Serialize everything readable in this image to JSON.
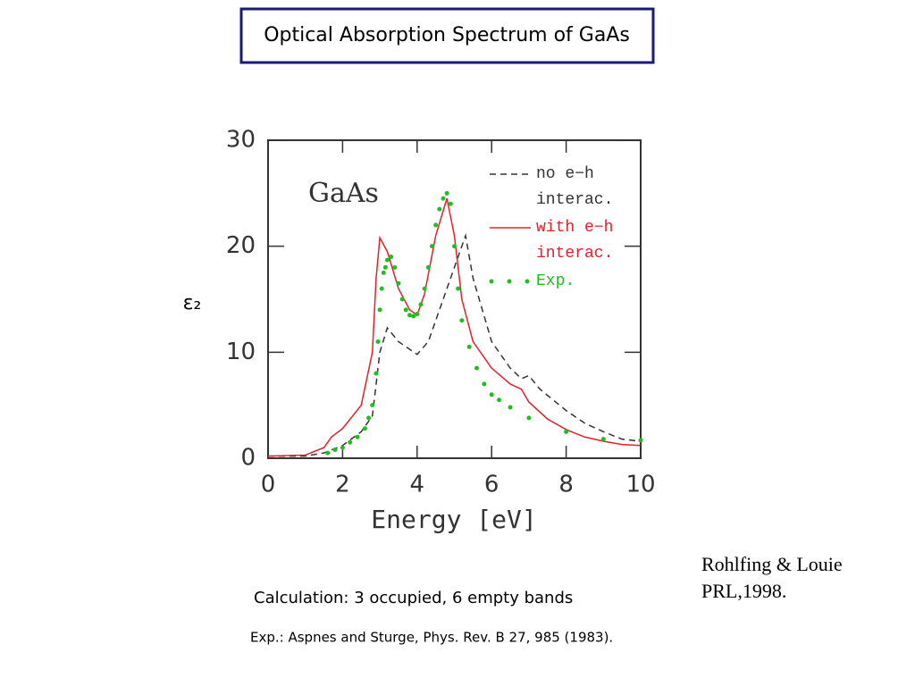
{
  "slide": {
    "title": "Optical Absorption Spectrum of GaAs",
    "notes": [
      "Calculation: 3 occupied, 6 empty bands",
      "Exp.: Aspnes and Sturge, Phys. Rev. B 27, 985 (1983)."
    ],
    "reference": [
      "Rohlfing & Louie",
      "PRL,1998."
    ]
  },
  "chart_data": {
    "type": "line",
    "annotation": "GaAs",
    "xlabel": "Energy [eV]",
    "ylabel": "ε₂",
    "xlim": [
      0,
      10
    ],
    "xticks": [
      0,
      2,
      4,
      6,
      8,
      10
    ],
    "ylim": [
      0,
      30
    ],
    "yticks": [
      0,
      10,
      20,
      30
    ],
    "series": [
      {
        "name": "no e−h interac.",
        "color": "#333333",
        "style": "dashed",
        "x": [
          0,
          1,
          1.5,
          2,
          2.5,
          2.8,
          3,
          3.2,
          3.5,
          4,
          4.3,
          4.6,
          5,
          5.3,
          5.5,
          6,
          6.5,
          6.8,
          7,
          7.3,
          8,
          8.5,
          9,
          9.5,
          10
        ],
        "values": [
          0.2,
          0.2,
          0.5,
          1.2,
          2.5,
          4,
          10,
          12.3,
          11,
          9.8,
          11,
          14,
          18,
          21,
          17,
          11,
          8.5,
          7.5,
          7.8,
          6.5,
          4.5,
          3.3,
          2.5,
          1.8,
          1.6
        ]
      },
      {
        "name": "with e−h interac.",
        "color": "#e8202a",
        "style": "solid",
        "x": [
          0,
          1,
          1.5,
          1.7,
          2,
          2.5,
          2.8,
          2.9,
          3,
          3.2,
          3.5,
          3.8,
          4,
          4.2,
          4.5,
          4.8,
          5,
          5.2,
          5.5,
          6,
          6.5,
          6.8,
          7,
          7.5,
          8,
          8.5,
          9,
          9.5,
          10
        ],
        "values": [
          0.2,
          0.3,
          1,
          2,
          2.8,
          5,
          10,
          17,
          20.8,
          19.5,
          16,
          14,
          13.5,
          15.5,
          21,
          24.5,
          21,
          15,
          11,
          8.5,
          7,
          6.5,
          5.3,
          3.7,
          2.7,
          2,
          1.6,
          1.3,
          1.2
        ]
      },
      {
        "name": "Exp.",
        "color": "#1fbf1f",
        "style": "dotted",
        "x": [
          1.6,
          1.8,
          2,
          2.2,
          2.4,
          2.6,
          2.7,
          2.8,
          2.9,
          2.95,
          3,
          3.05,
          3.1,
          3.15,
          3.2,
          3.3,
          3.4,
          3.5,
          3.6,
          3.7,
          3.8,
          3.9,
          4,
          4.1,
          4.2,
          4.3,
          4.4,
          4.5,
          4.6,
          4.7,
          4.8,
          4.9,
          5,
          5.1,
          5.2,
          5.4,
          5.6,
          5.8,
          6,
          6.2,
          6.5,
          7,
          8,
          9,
          10
        ],
        "values": [
          0.5,
          0.8,
          1,
          1.5,
          2,
          2.8,
          3.8,
          5,
          8,
          11,
          14,
          16,
          17.5,
          18,
          18.7,
          19,
          18,
          16.5,
          15,
          14,
          13.5,
          13.4,
          13.6,
          14.5,
          16,
          18,
          20,
          22,
          23.5,
          24.5,
          25,
          24,
          20,
          16,
          13,
          10.5,
          8.5,
          7,
          6,
          5.5,
          4.8,
          3.8,
          2.5,
          1.8,
          1.7
        ]
      }
    ]
  }
}
